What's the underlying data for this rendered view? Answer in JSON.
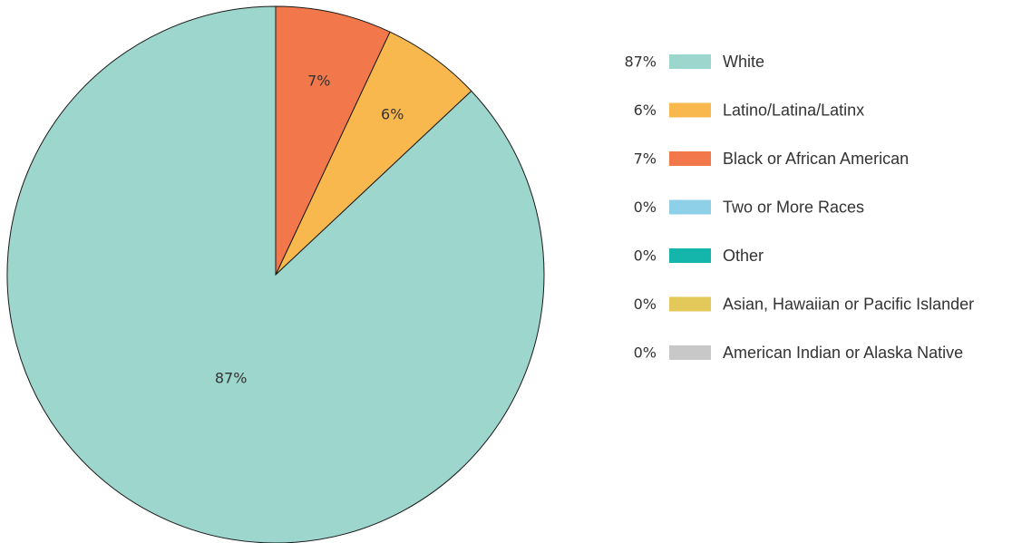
{
  "chart_data": {
    "type": "pie",
    "start_angle": "top",
    "direction": "counterclockwise",
    "legend_position": "right",
    "slices": [
      {
        "name": "White",
        "value": 87,
        "label": "87%",
        "color": "#9dd6cc"
      },
      {
        "name": "Latino/Latina/Latinx",
        "value": 6,
        "label": "6%",
        "color": "#f9b84e"
      },
      {
        "name": "Black or African American",
        "value": 7,
        "label": "7%",
        "color": "#f2774b"
      },
      {
        "name": "Two or More Races",
        "value": 0,
        "label": "0%",
        "color": "#8fd0e9"
      },
      {
        "name": "Other",
        "value": 0,
        "label": "0%",
        "color": "#14b5aa"
      },
      {
        "name": "Asian, Hawaiian or Pacific Islander",
        "value": 0,
        "label": "0%",
        "color": "#e2c95a"
      },
      {
        "name": "American Indian or Alaska Native",
        "value": 0,
        "label": "0%",
        "color": "#c8c8c8"
      }
    ]
  }
}
